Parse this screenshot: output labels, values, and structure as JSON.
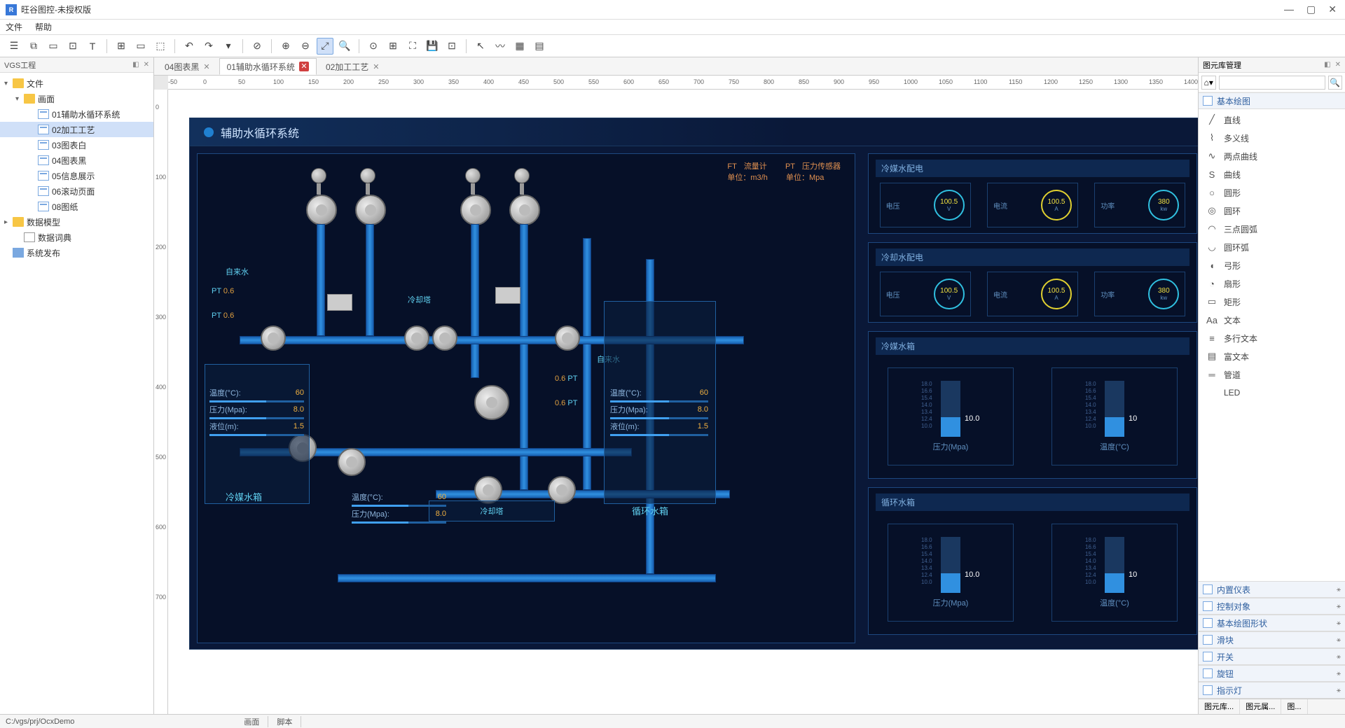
{
  "app": {
    "title": "旺谷图控-未授权版",
    "icon_text": "R"
  },
  "menu": {
    "file": "文件",
    "help": "帮助"
  },
  "toolbar_icons": [
    "☰",
    "⧉",
    "▭",
    "⊡",
    "T",
    "│",
    "⊞",
    "▭",
    "⬚",
    "│",
    "↶",
    "↷",
    "▾",
    "│",
    "⊘",
    "│",
    "⊕",
    "⊖",
    "⤢",
    "🔍",
    "│",
    "⊙",
    "⊞",
    "⛶",
    "💾",
    "⊡",
    "│",
    "↖",
    "〰",
    "▦",
    "▤"
  ],
  "leftpanel": {
    "title": "VGS工程",
    "tree": {
      "root": "文件",
      "pages_folder": "画面",
      "pages": [
        "01辅助水循环系统",
        "02加工工艺",
        "03图表白",
        "04图表黑",
        "05信息展示",
        "06滚动页面",
        "08图纸"
      ],
      "selected": "02加工工艺",
      "data_model": "数据模型",
      "data_dict": "数据词典",
      "publish": "系统发布"
    }
  },
  "tabs": [
    {
      "label": "04图表黑",
      "active": false,
      "mod": false
    },
    {
      "label": "01辅助水循环系统",
      "active": true,
      "mod": true
    },
    {
      "label": "02加工工艺",
      "active": false,
      "mod": false
    }
  ],
  "ruler_h": [
    "-50",
    "0",
    "50",
    "100",
    "150",
    "200",
    "250",
    "300",
    "350",
    "400",
    "450",
    "500",
    "550",
    "600",
    "650",
    "700",
    "750",
    "800",
    "850",
    "900",
    "950",
    "1000",
    "1050",
    "1100",
    "1150",
    "1200",
    "1250",
    "1300",
    "1350",
    "1400"
  ],
  "ruler_v": [
    "0",
    "100",
    "200",
    "300",
    "400",
    "500",
    "600",
    "700"
  ],
  "scada": {
    "title": "辅助水循环系统",
    "bg": "#0a1838",
    "border": "#1a3860",
    "legend": {
      "flow_label": "流量计",
      "press_label": "压力传感器",
      "flow_unit": "单位：m3/h",
      "press_unit": "单位：Mpa"
    },
    "pt_vals": [
      "0.6",
      "0.6",
      "0.6",
      "0.6"
    ],
    "waterin": "自来水",
    "cooling_tower": "冷却塔",
    "tanks": {
      "coolant_tank": {
        "title": "冷媒水箱",
        "temp_l": "温度(°C):",
        "temp_v": "60",
        "press_l": "压力(Mpa):",
        "press_v": "8.0",
        "level_l": "液位(m):",
        "level_v": "1.5"
      },
      "cycle_tank": {
        "title": "循环水箱",
        "temp_l": "温度(°C):",
        "temp_v": "60",
        "press_l": "压力(Mpa):",
        "press_v": "8.0",
        "level_l": "液位(m):",
        "level_v": "1.5"
      },
      "cooling_mid": {
        "title_center": "冷却塔",
        "temp_l": "温度(°C):",
        "temp_v": "60",
        "press_l": "压力(Mpa):",
        "press_v": "8.0"
      }
    },
    "dash": {
      "power1": {
        "title": "冷媒水配电",
        "g1l": "电压",
        "g1v": "100.5",
        "g1u": "V",
        "g2l": "电流",
        "g2v": "100.5",
        "g2u": "A",
        "g3l": "功率",
        "g3v": "380",
        "g3u": "kw"
      },
      "power2": {
        "title": "冷却水配电",
        "g1l": "电压",
        "g1v": "100.5",
        "g1u": "V",
        "g2l": "电流",
        "g2v": "100.5",
        "g2u": "A",
        "g3l": "功率",
        "g3v": "380",
        "g3u": "kw"
      },
      "tank1": {
        "title": "冷媒水箱",
        "bar1_l": "压力(Mpa)",
        "bar1_v": "10.0",
        "bar2_l": "温度(°C)",
        "bar2_v": "10",
        "scale": [
          "18.0",
          "16.6",
          "15.4",
          "14.0",
          "13.4",
          "12.4",
          "10.0"
        ]
      },
      "tank2": {
        "title": "循环水箱",
        "bar1_l": "压力(Mpa)",
        "bar1_v": "10.0",
        "bar2_l": "温度(°C)",
        "bar2_v": "10",
        "scale": [
          "18.0",
          "16.6",
          "15.4",
          "14.0",
          "13.4",
          "12.4",
          "10.0"
        ]
      }
    }
  },
  "rightpanel": {
    "title": "图元库管理",
    "search_ph": "",
    "cat1": "基本绘图",
    "shapes": [
      {
        "icon": "╱",
        "label": "直线"
      },
      {
        "icon": "⌇",
        "label": "多义线"
      },
      {
        "icon": "∿",
        "label": "两点曲线"
      },
      {
        "icon": "S",
        "label": "曲线"
      },
      {
        "icon": "○",
        "label": "圆形"
      },
      {
        "icon": "◎",
        "label": "圆环"
      },
      {
        "icon": "◠",
        "label": "三点圆弧"
      },
      {
        "icon": "◡",
        "label": "圆环弧"
      },
      {
        "icon": "◖",
        "label": "弓形"
      },
      {
        "icon": "◔",
        "label": "扇形"
      },
      {
        "icon": "▭",
        "label": "矩形"
      },
      {
        "icon": "Aa",
        "label": "文本"
      },
      {
        "icon": "≡",
        "label": "多行文本"
      },
      {
        "icon": "▤",
        "label": "富文本"
      },
      {
        "icon": "═",
        "label": "管道"
      },
      {
        "icon": "",
        "label": "LED"
      }
    ],
    "cats_bottom": [
      "内置仪表",
      "控制对象",
      "基本绘图形状",
      "滑块",
      "开关",
      "旋钮",
      "指示灯"
    ]
  },
  "rtabs": [
    "图元库...",
    "图元属...",
    "图..."
  ],
  "statusbar": {
    "path": "C:/vgs/prj/OcxDemo",
    "t1": "画面",
    "t2": "脚本"
  }
}
